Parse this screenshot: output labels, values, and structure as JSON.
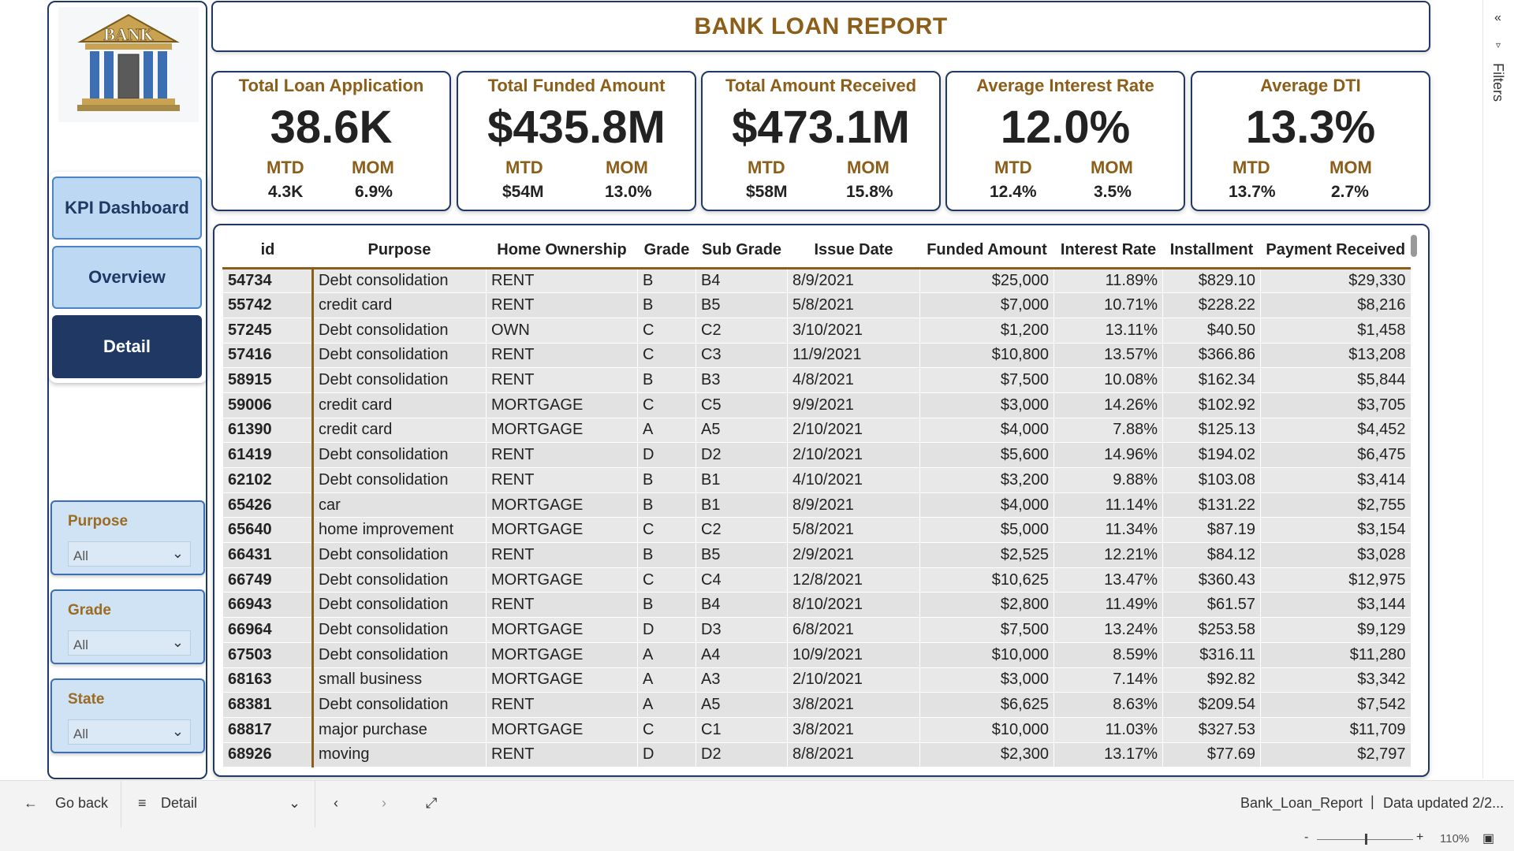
{
  "header": {
    "title": "BANK LOAN REPORT"
  },
  "logo": {
    "text": "BANK"
  },
  "nav": [
    {
      "label": "KPI Dashboard"
    },
    {
      "label": "Overview"
    },
    {
      "label": "Detail"
    }
  ],
  "slicers": [
    {
      "title": "Purpose",
      "value": "All"
    },
    {
      "title": "Grade",
      "value": "All"
    },
    {
      "title": "State",
      "value": "All"
    }
  ],
  "kpis": [
    {
      "title": "Total Loan Application",
      "value": "38.6K",
      "mtd_label": "MTD",
      "mtd": "4.3K",
      "mom_label": "MOM",
      "mom": "6.9%"
    },
    {
      "title": "Total Funded Amount",
      "value": "$435.8M",
      "mtd_label": "MTD",
      "mtd": "$54M",
      "mom_label": "MOM",
      "mom": "13.0%"
    },
    {
      "title": "Total Amount Received",
      "value": "$473.1M",
      "mtd_label": "MTD",
      "mtd": "$58M",
      "mom_label": "MOM",
      "mom": "15.8%"
    },
    {
      "title": "Average Interest Rate",
      "value": "12.0%",
      "mtd_label": "MTD",
      "mtd": "12.4%",
      "mom_label": "MOM",
      "mom": "3.5%"
    },
    {
      "title": "Average DTI",
      "value": "13.3%",
      "mtd_label": "MTD",
      "mtd": "13.7%",
      "mom_label": "MOM",
      "mom": "2.7%"
    }
  ],
  "table": {
    "columns": [
      "id",
      "Purpose",
      "Home Ownership",
      "Grade",
      "Sub Grade",
      "Issue Date",
      "Funded Amount",
      "Interest Rate",
      "Installment",
      "Payment Received"
    ],
    "rows": [
      [
        "54734",
        "Debt consolidation",
        "RENT",
        "B",
        "B4",
        "8/9/2021",
        "$25,000",
        "11.89%",
        "$829.10",
        "$29,330"
      ],
      [
        "55742",
        "credit card",
        "RENT",
        "B",
        "B5",
        "5/8/2021",
        "$7,000",
        "10.71%",
        "$228.22",
        "$8,216"
      ],
      [
        "57245",
        "Debt consolidation",
        "OWN",
        "C",
        "C2",
        "3/10/2021",
        "$1,200",
        "13.11%",
        "$40.50",
        "$1,458"
      ],
      [
        "57416",
        "Debt consolidation",
        "RENT",
        "C",
        "C3",
        "11/9/2021",
        "$10,800",
        "13.57%",
        "$366.86",
        "$13,208"
      ],
      [
        "58915",
        "Debt consolidation",
        "RENT",
        "B",
        "B3",
        "4/8/2021",
        "$7,500",
        "10.08%",
        "$162.34",
        "$5,844"
      ],
      [
        "59006",
        "credit card",
        "MORTGAGE",
        "C",
        "C5",
        "9/9/2021",
        "$3,000",
        "14.26%",
        "$102.92",
        "$3,705"
      ],
      [
        "61390",
        "credit card",
        "MORTGAGE",
        "A",
        "A5",
        "2/10/2021",
        "$4,000",
        "7.88%",
        "$125.13",
        "$4,452"
      ],
      [
        "61419",
        "Debt consolidation",
        "RENT",
        "D",
        "D2",
        "2/10/2021",
        "$5,600",
        "14.96%",
        "$194.02",
        "$6,475"
      ],
      [
        "62102",
        "Debt consolidation",
        "RENT",
        "B",
        "B1",
        "4/10/2021",
        "$3,200",
        "9.88%",
        "$103.08",
        "$3,414"
      ],
      [
        "65426",
        "car",
        "MORTGAGE",
        "B",
        "B1",
        "8/9/2021",
        "$4,000",
        "11.14%",
        "$131.22",
        "$2,755"
      ],
      [
        "65640",
        "home improvement",
        "MORTGAGE",
        "C",
        "C2",
        "5/8/2021",
        "$5,000",
        "11.34%",
        "$87.19",
        "$3,154"
      ],
      [
        "66431",
        "Debt consolidation",
        "RENT",
        "B",
        "B5",
        "2/9/2021",
        "$2,525",
        "12.21%",
        "$84.12",
        "$3,028"
      ],
      [
        "66749",
        "Debt consolidation",
        "MORTGAGE",
        "C",
        "C4",
        "12/8/2021",
        "$10,625",
        "13.47%",
        "$360.43",
        "$12,975"
      ],
      [
        "66943",
        "Debt consolidation",
        "RENT",
        "B",
        "B4",
        "8/10/2021",
        "$2,800",
        "11.49%",
        "$61.57",
        "$3,144"
      ],
      [
        "66964",
        "Debt consolidation",
        "MORTGAGE",
        "D",
        "D3",
        "6/8/2021",
        "$7,500",
        "13.24%",
        "$253.58",
        "$9,129"
      ],
      [
        "67503",
        "Debt consolidation",
        "MORTGAGE",
        "A",
        "A4",
        "10/9/2021",
        "$10,000",
        "8.59%",
        "$316.11",
        "$11,280"
      ],
      [
        "68163",
        "small business",
        "MORTGAGE",
        "A",
        "A3",
        "2/10/2021",
        "$3,000",
        "7.14%",
        "$92.82",
        "$3,342"
      ],
      [
        "68381",
        "Debt consolidation",
        "RENT",
        "A",
        "A5",
        "3/8/2021",
        "$6,625",
        "8.63%",
        "$209.54",
        "$7,542"
      ],
      [
        "68817",
        "major purchase",
        "MORTGAGE",
        "C",
        "C1",
        "3/8/2021",
        "$10,000",
        "11.03%",
        "$327.53",
        "$11,709"
      ],
      [
        "68926",
        "moving",
        "RENT",
        "D",
        "D2",
        "8/8/2021",
        "$2,300",
        "13.17%",
        "$77.69",
        "$2,797"
      ]
    ]
  },
  "filters": {
    "label": "Filters",
    "collapse_glyph": "«"
  },
  "bottom": {
    "go_back": "Go back",
    "page_select": "Detail",
    "report_name": "Bank_Loan_Report",
    "data_updated": "Data updated 2/2...",
    "zoom_minus": "-",
    "zoom_plus": "+",
    "zoom": "110%",
    "zoom_level": 0.5
  }
}
